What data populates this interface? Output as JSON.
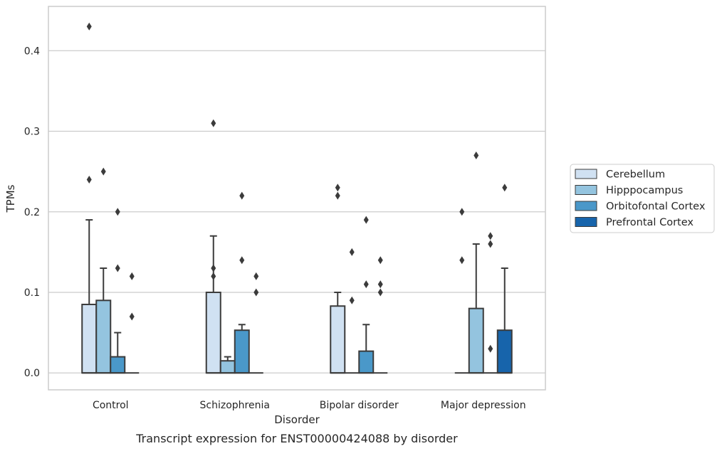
{
  "caption": "Transcript expression for ENST00000424088 by disorder",
  "chart_data": {
    "type": "bar",
    "xlabel": "Disorder",
    "ylabel": "TPMs",
    "categories": [
      "Control",
      "Schizophrenia",
      "Bipolar disorder",
      "Major depression"
    ],
    "ylim": [
      -0.021,
      0.455
    ],
    "yticks": [
      0.0,
      0.1,
      0.2,
      0.3,
      0.4
    ],
    "ytick_labels": [
      "0.0",
      "0.1",
      "0.2",
      "0.3",
      "0.4"
    ],
    "grid": "horizontal",
    "legend_position": "right",
    "error_bars": "whisker cap above bar",
    "series": [
      {
        "name": "Cerebellum",
        "color": "#d0e1f2",
        "values": [
          0.085,
          0.1,
          0.083,
          0.0
        ],
        "whisker_top": [
          0.19,
          0.17,
          0.1,
          0.0
        ],
        "outliers": [
          [
            0.43,
            0.24
          ],
          [
            0.31,
            0.13,
            0.12
          ],
          [
            0.23,
            0.22
          ],
          [
            0.2,
            0.14
          ]
        ]
      },
      {
        "name": "Hipppocampus",
        "color": "#94c4df",
        "values": [
          0.09,
          0.015,
          0.0,
          0.08
        ],
        "whisker_top": [
          0.13,
          0.02,
          0.0,
          0.16
        ],
        "outliers": [
          [
            0.25
          ],
          [],
          [
            0.15,
            0.09
          ],
          [
            0.27
          ]
        ]
      },
      {
        "name": "Orbitofontal Cortex",
        "color": "#4a98c9",
        "values": [
          0.02,
          0.053,
          0.027,
          0.0
        ],
        "whisker_top": [
          0.05,
          0.06,
          0.06,
          0.0
        ],
        "outliers": [
          [
            0.2,
            0.13
          ],
          [
            0.22,
            0.14
          ],
          [
            0.19,
            0.11
          ],
          [
            0.17,
            0.16,
            0.03
          ]
        ]
      },
      {
        "name": "Prefrontal Cortex",
        "color": "#1764ab",
        "values": [
          0.0,
          0.0,
          0.0,
          0.053
        ],
        "whisker_top": [
          0.0,
          0.0,
          0.0,
          0.13
        ],
        "outliers": [
          [
            0.12,
            0.07
          ],
          [
            0.12,
            0.1
          ],
          [
            0.14,
            0.11,
            0.1
          ],
          [
            0.23
          ]
        ]
      }
    ]
  }
}
